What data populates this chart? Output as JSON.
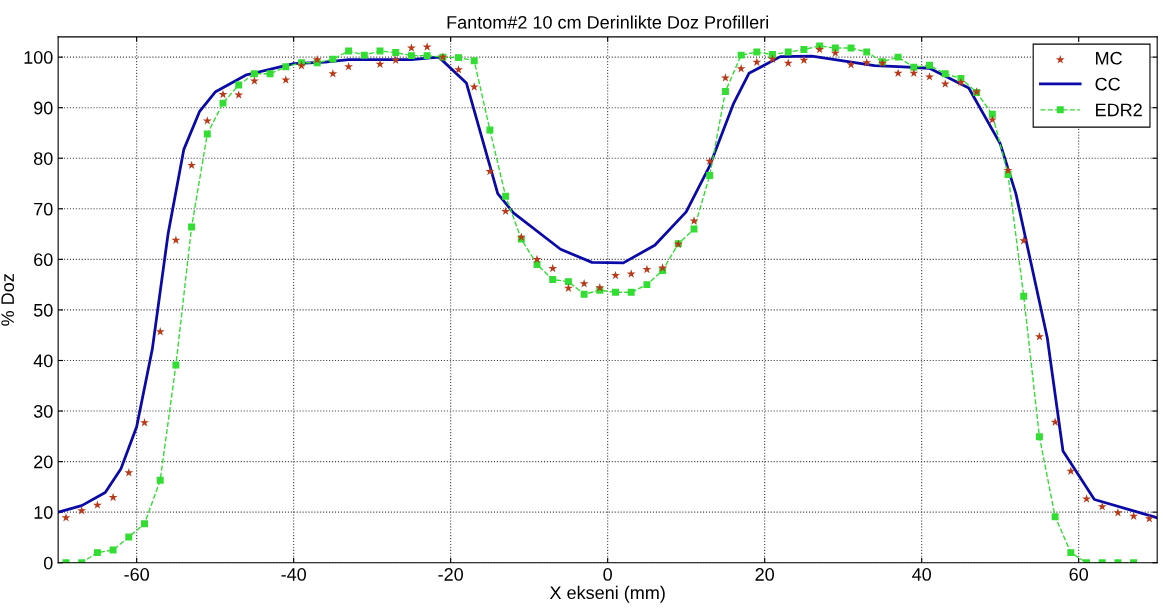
{
  "chart_data": {
    "type": "line",
    "title": "Fantom#2 10 cm Derinlikte Doz Profilleri",
    "xlabel": "X ekseni (mm)",
    "ylabel": "% Doz",
    "xlim": [
      -70,
      70
    ],
    "xticks": [
      -60,
      -40,
      -20,
      0,
      20,
      40,
      60
    ],
    "ylim": [
      0,
      104
    ],
    "yticks": [
      0,
      10,
      20,
      30,
      40,
      50,
      60,
      70,
      80,
      90,
      100
    ],
    "grid": true,
    "legend": "top right",
    "series": [
      {
        "name": "MC",
        "type": "scatter",
        "marker": "star",
        "color": "#b83a1a",
        "x": [
          -69,
          -67,
          -65,
          -63,
          -61,
          -59,
          -57,
          -55,
          -53,
          -51,
          -49,
          -47,
          -45,
          -41,
          -39,
          -37,
          -35,
          -33,
          -29,
          -27,
          -25,
          -23,
          -21,
          -19,
          -17,
          -15,
          -13,
          -11,
          -9,
          -7,
          -5,
          -3,
          -1,
          1,
          3,
          5,
          7,
          9,
          11,
          13,
          15,
          17,
          19,
          21,
          23,
          25,
          27,
          29,
          31,
          33,
          35,
          37,
          39,
          41,
          43,
          45,
          47,
          49,
          51,
          53,
          55,
          57,
          59,
          61,
          63,
          65,
          67,
          69
        ],
        "values": [
          8.9,
          10.3,
          11.4,
          12.9,
          17.8,
          27.7,
          45.7,
          63.8,
          78.6,
          87.4,
          92.6,
          92.5,
          95.3,
          95.5,
          98.3,
          99.5,
          96.7,
          98.1,
          98.6,
          99.4,
          101.8,
          102,
          100,
          97.5,
          94.1,
          77.4,
          69.5,
          64.4,
          60,
          58.2,
          54.3,
          55.2,
          54.4,
          56.8,
          57.1,
          58,
          58.3,
          63,
          67.6,
          79.4,
          95.9,
          97.7,
          99,
          99.6,
          98.8,
          99.4,
          101.5,
          100.8,
          98.5,
          98.9,
          98.8,
          96.8,
          96.8,
          96.1,
          94.7,
          95,
          93.1,
          87.6,
          77.6,
          63.7,
          44.7,
          27.8,
          18.1,
          12.6,
          11.1,
          9.9,
          9.2,
          8.7
        ]
      },
      {
        "name": "CC",
        "marker": "none",
        "line_style": "solid",
        "color": "#0a0aa8",
        "x": [
          -70,
          -67,
          -64,
          -62,
          -60,
          -58,
          -56,
          -54,
          -52,
          -50,
          -46,
          -40,
          -36,
          -33,
          -25,
          -21.5,
          -18,
          -14,
          -12,
          -6,
          -2,
          2,
          6,
          10,
          13,
          16,
          18,
          22,
          26,
          34,
          37,
          41,
          46,
          50,
          52,
          56,
          58,
          62,
          70
        ],
        "values": [
          10,
          11.3,
          13.9,
          18.6,
          26.9,
          42.3,
          65,
          81.7,
          89.2,
          93.1,
          96.5,
          98.7,
          99,
          99.5,
          99.5,
          100,
          94.9,
          73,
          69.2,
          62,
          59.4,
          59.3,
          62.8,
          69.4,
          78.5,
          90.7,
          96.8,
          100.1,
          100.2,
          98.3,
          98.1,
          97.8,
          93.9,
          82.9,
          73,
          44.5,
          22.1,
          12.5,
          8.9
        ]
      },
      {
        "name": "EDR2",
        "type": "line",
        "marker": "square",
        "line_style": "dashed",
        "color": "#33dd33",
        "x": [
          -69,
          -67,
          -65,
          -63,
          -61,
          -59,
          -57,
          -55,
          -53,
          -51,
          -49,
          -47,
          -45,
          -43,
          -41,
          -39,
          -37,
          -35,
          -33,
          -31,
          -29,
          -27,
          -25,
          -23,
          -21,
          -19,
          -17,
          -15,
          -13,
          -11,
          -9,
          -7,
          -5,
          -3,
          -1,
          1,
          3,
          5,
          7,
          9,
          11,
          13,
          15,
          17,
          19,
          21,
          23,
          25,
          27,
          29,
          31,
          33,
          35,
          37,
          39,
          41,
          43,
          45,
          47,
          49,
          51,
          53,
          55,
          57,
          59,
          61,
          63,
          65,
          67
        ],
        "values": [
          0,
          0,
          2,
          2.5,
          5.1,
          7.7,
          16.3,
          39.1,
          66.4,
          84.8,
          90.9,
          94.5,
          96.7,
          96.7,
          98.1,
          98.9,
          98.9,
          99.6,
          101.2,
          100.4,
          101.2,
          100.9,
          100.3,
          100.3,
          100,
          99.9,
          99.3,
          85.6,
          72.5,
          64,
          59,
          56,
          55.6,
          53.1,
          53.9,
          53.5,
          53.5,
          55,
          57.8,
          63.1,
          66,
          76.6,
          93.2,
          100.4,
          101,
          100.5,
          101,
          101.5,
          102.2,
          101.8,
          101.8,
          101,
          99.1,
          100,
          98,
          98.4,
          96.7,
          95.8,
          93,
          88.7,
          76.8,
          52.7,
          24.9,
          9.1,
          2,
          0,
          0,
          0,
          0
        ]
      }
    ]
  }
}
